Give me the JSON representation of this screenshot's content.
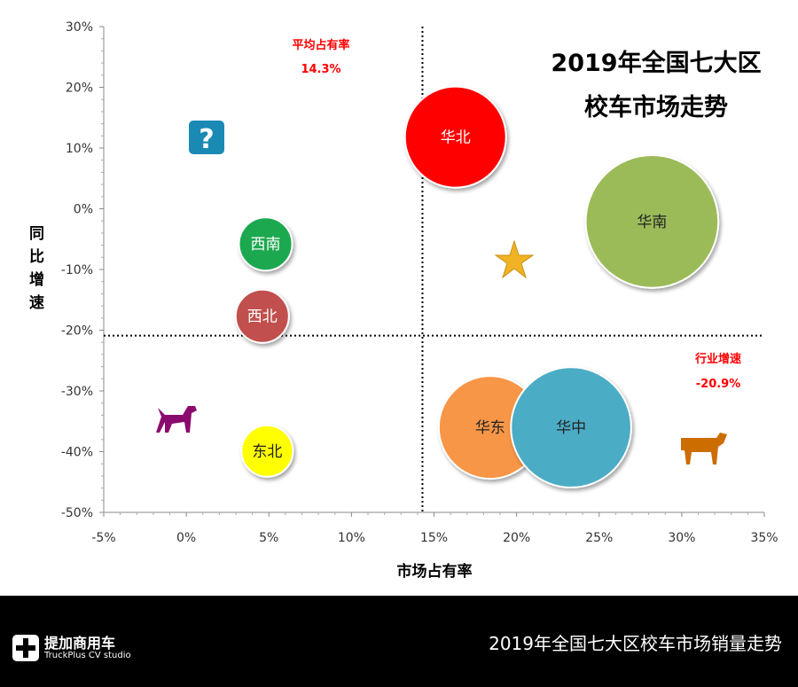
{
  "chart_data": {
    "type": "bubble",
    "title": [
      "2019年全国七大区",
      "校车市场走势"
    ],
    "xlabel": "市场占有率",
    "ylabel": "同比增速",
    "xlim": [
      -5,
      35
    ],
    "ylim": [
      -50,
      30
    ],
    "xticks": [
      "-5%",
      "0%",
      "5%",
      "10%",
      "15%",
      "20%",
      "25%",
      "30%",
      "35%"
    ],
    "yticks": [
      "30%",
      "20%",
      "10%",
      "0%",
      "-10%",
      "-20%",
      "-30%",
      "-40%",
      "-50%"
    ],
    "grid": false,
    "series": [
      {
        "name": "华北",
        "x": 16.3,
        "y": 11.8,
        "size": 32.5,
        "color": "#ff0000",
        "text_color": "#ffffff"
      },
      {
        "name": "华南",
        "x": 28.2,
        "y": -2.1,
        "size": 56,
        "color": "#9bbb59",
        "text_color": "#222222"
      },
      {
        "name": "西南",
        "x": 4.8,
        "y": -5.8,
        "size": 9,
        "color": "#1aa84f",
        "text_color": "#ffffff"
      },
      {
        "name": "西北",
        "x": 4.6,
        "y": -17.7,
        "size": 9,
        "color": "#c0504d",
        "text_color": "#ffffff"
      },
      {
        "name": "东北",
        "x": 4.9,
        "y": -39.9,
        "size": 8.4,
        "color": "#ffff00",
        "text_color": "#222222"
      },
      {
        "name": "华东",
        "x": 18.4,
        "y": -36,
        "size": 33.6,
        "color": "#f79646",
        "text_color": "#222222"
      },
      {
        "name": "华中",
        "x": 23.3,
        "y": -36,
        "size": 46,
        "color": "#4bacc6",
        "text_color": "#222222"
      }
    ],
    "reference_lines": {
      "avg_share": {
        "label": "平均占有率",
        "value_label": "14.3%",
        "value": 14.3
      },
      "industry_growth": {
        "label": "行业增速",
        "value_label": "-20.9%",
        "value": -20.9
      }
    },
    "annotation_color": "#ff0000",
    "quadrant_icons": [
      "question-icon",
      "star-icon",
      "dog-icon",
      "cow-icon"
    ]
  },
  "footer": {
    "title": "2019年全国七大区校车市场销量走势",
    "logo_cn": "提加商用车",
    "logo_en": "TruckPlus CV studio"
  }
}
